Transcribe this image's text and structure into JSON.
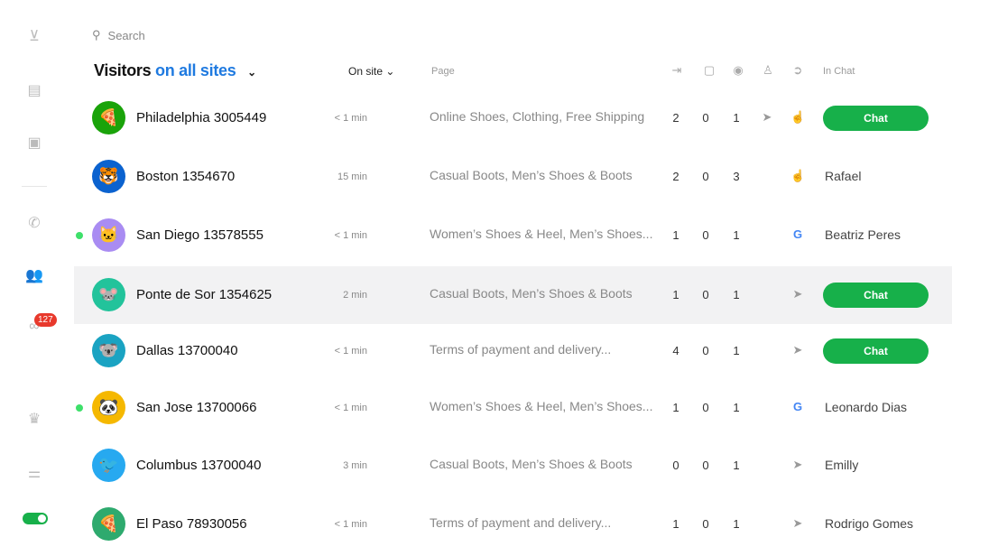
{
  "sidebar": {
    "icons": [
      "inbox-icon",
      "chat-icon",
      "visitor-monitor-icon",
      "phone-icon",
      "team-icon",
      "binoculars-icon",
      "crown-icon",
      "settings-sliders-icon"
    ],
    "badge": "127",
    "toggle_on": true
  },
  "search": {
    "placeholder": "Search"
  },
  "header": {
    "title": "Visitors",
    "scope": "on all sites",
    "sort": "On site",
    "page": "Page",
    "in_chat": "In Chat",
    "column_icons": [
      "enter-icon",
      "message-icon",
      "eye-icon",
      "user-icon",
      "arrow-circle-icon"
    ]
  },
  "colors": {
    "accent": "#1f7ae0",
    "chat_button": "#17b04a",
    "online_dot": "#3ee06a",
    "badge": "#e8392c"
  },
  "visitors": [
    {
      "name": "Philadelphia 3005449",
      "time": "< 1 min",
      "page": "Online Shoes, Clothing, Free Shipping",
      "c1": "2",
      "c2": "0",
      "c3": "1",
      "icons": [
        "cursor",
        "hand"
      ],
      "chat": "Chat",
      "agent": null,
      "avatar": "🍕",
      "avatar_color": "#1aa30a",
      "online": false,
      "selected": false
    },
    {
      "name": "Boston 1354670",
      "time": "15 min",
      "page": "Casual Boots, Men’s Shoes & Boots",
      "c1": "2",
      "c2": "0",
      "c3": "3",
      "icons": [
        null,
        "hand"
      ],
      "chat": null,
      "agent": "Rafael",
      "avatar": "🐯",
      "avatar_color": "#0b62cf",
      "online": false,
      "selected": false
    },
    {
      "name": "San Diego 13578555",
      "time": "< 1 min",
      "page": "Women’s Shoes & Heel, Men’s Shoes...",
      "c1": "1",
      "c2": "0",
      "c3": "1",
      "icons": [
        null,
        "google"
      ],
      "chat": null,
      "agent": "Beatriz Peres",
      "avatar": "🐱",
      "avatar_color": "#a98cf2",
      "online": true,
      "selected": false
    },
    {
      "name": "Ponte de Sor 1354625",
      "time": "2 min",
      "page": "Casual Boots, Men’s Shoes & Boots",
      "c1": "1",
      "c2": "0",
      "c3": "1",
      "icons": [
        null,
        "cursor"
      ],
      "chat": "Chat",
      "agent": null,
      "avatar": "🐭",
      "avatar_color": "#22c39b",
      "online": false,
      "selected": true
    },
    {
      "name": "Dallas 13700040",
      "time": "< 1 min",
      "page": "Terms of payment and delivery...",
      "c1": "4",
      "c2": "0",
      "c3": "1",
      "icons": [
        null,
        "cursor"
      ],
      "chat": "Chat",
      "agent": null,
      "avatar": "🐨",
      "avatar_color": "#1aa3c2",
      "online": false,
      "selected": false
    },
    {
      "name": "San Jose 13700066",
      "time": "< 1 min",
      "page": "Women’s Shoes & Heel, Men’s Shoes...",
      "c1": "1",
      "c2": "0",
      "c3": "1",
      "icons": [
        null,
        "google"
      ],
      "chat": null,
      "agent": "Leonardo Dias",
      "avatar": "🐼",
      "avatar_color": "#f5b800",
      "online": true,
      "selected": false
    },
    {
      "name": "Columbus 13700040",
      "time": "3 min",
      "page": "Casual Boots, Men’s Shoes & Boots",
      "c1": "0",
      "c2": "0",
      "c3": "1",
      "icons": [
        null,
        "cursor"
      ],
      "chat": null,
      "agent": "Emilly",
      "avatar": "🐦",
      "avatar_color": "#27a9f0",
      "online": false,
      "selected": false
    },
    {
      "name": "El Paso 78930056",
      "time": "< 1 min",
      "page": "Terms of payment and delivery...",
      "c1": "1",
      "c2": "0",
      "c3": "1",
      "icons": [
        null,
        "cursor"
      ],
      "chat": null,
      "agent": "Rodrigo Gomes",
      "avatar": "🍕",
      "avatar_color": "#2eaa6e",
      "online": false,
      "selected": false
    }
  ]
}
